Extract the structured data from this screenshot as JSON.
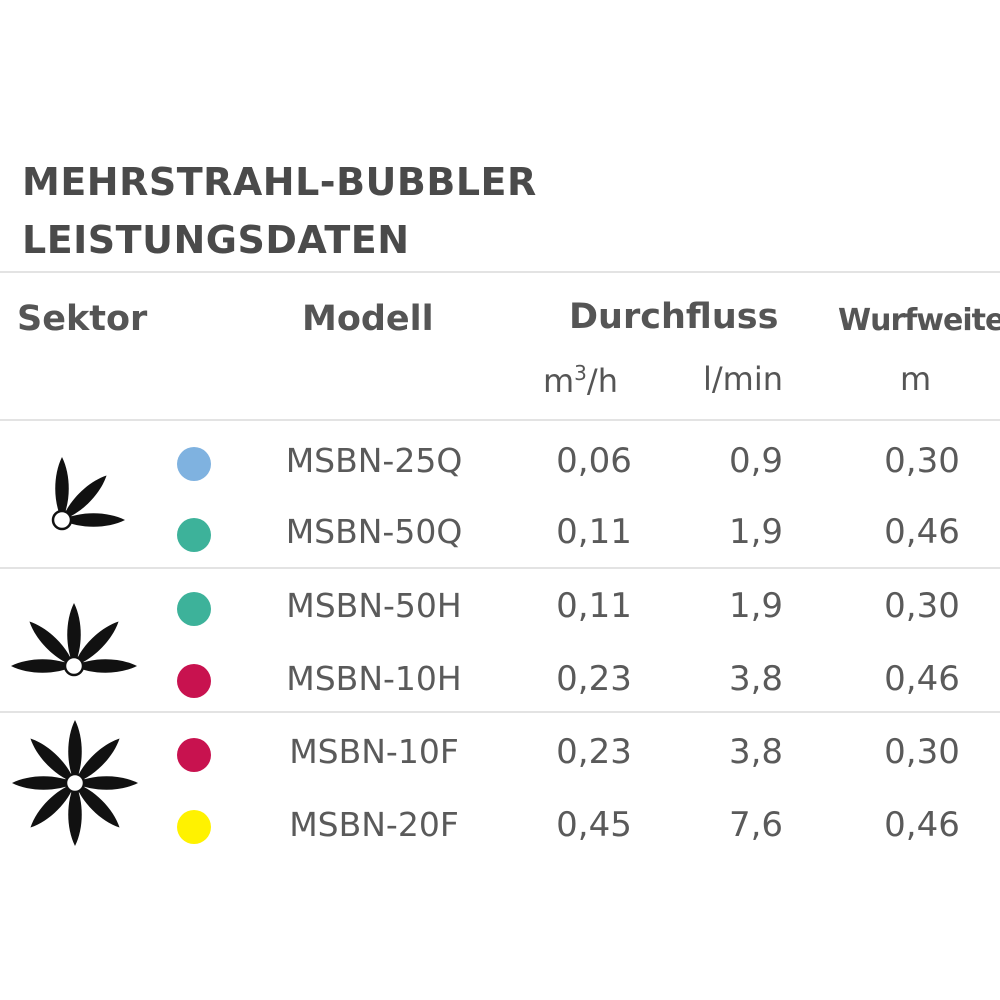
{
  "title": {
    "line1": "MEHRSTRAHL-BUBBLER",
    "line2": "LEISTUNGSDATEN"
  },
  "headers": {
    "sektor": "Sektor",
    "modell": "Modell",
    "durchfluss": "Durchfluss",
    "wurfweite": "Wurfweite",
    "unit_m3": "m",
    "unit_m3_sup": "3",
    "unit_m3_suffix": "/h",
    "unit_lmin": "l/min",
    "unit_m": "m"
  },
  "sectors": [
    {
      "name": "quarter",
      "icon": "quarter-sector-icon"
    },
    {
      "name": "half",
      "icon": "half-sector-icon"
    },
    {
      "name": "full",
      "icon": "full-sector-icon"
    }
  ],
  "rows": [
    {
      "color": "#7fb2e0",
      "model": "MSBN-25Q",
      "m3h": "0,06",
      "lmin": "0,9",
      "wurf": "0,30"
    },
    {
      "color": "#3db29a",
      "model": "MSBN-50Q",
      "m3h": "0,11",
      "lmin": "1,9",
      "wurf": "0,46"
    },
    {
      "color": "#3db29a",
      "model": "MSBN-50H",
      "m3h": "0,11",
      "lmin": "1,9",
      "wurf": "0,30"
    },
    {
      "color": "#c8124f",
      "model": "MSBN-10H",
      "m3h": "0,23",
      "lmin": "3,8",
      "wurf": "0,46"
    },
    {
      "color": "#c8124f",
      "model": "MSBN-10F",
      "m3h": "0,23",
      "lmin": "3,8",
      "wurf": "0,30"
    },
    {
      "color": "#fff200",
      "model": "MSBN-20F",
      "m3h": "0,45",
      "lmin": "7,6",
      "wurf": "0,46"
    }
  ]
}
